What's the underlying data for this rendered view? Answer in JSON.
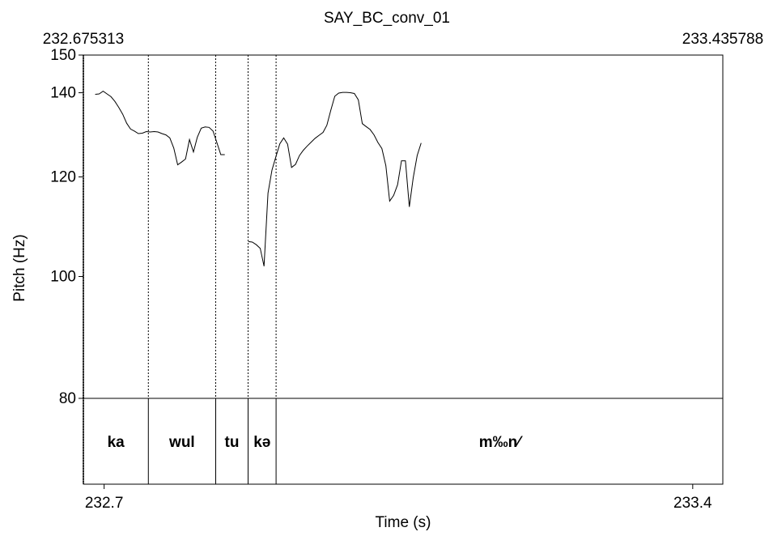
{
  "chart_data": {
    "type": "line",
    "title": "SAY_BC_conv_01",
    "top_left_time": "232.675313",
    "top_right_time": "233.435788",
    "xlabel": "Time (s)",
    "ylabel": "Pitch (Hz)",
    "xlim": [
      232.675313,
      233.435788
    ],
    "ylim": [
      80,
      150
    ],
    "x_ticks": [
      {
        "value": 232.7,
        "label": "232.7"
      },
      {
        "value": 233.4,
        "label": "233.4"
      }
    ],
    "y_ticks": [
      {
        "value": 150,
        "label": "150"
      },
      {
        "value": 140,
        "label": "140"
      },
      {
        "value": 120,
        "label": "120"
      },
      {
        "value": 100,
        "label": "100"
      },
      {
        "value": 80,
        "label": "80"
      }
    ],
    "series": [
      {
        "segments": [
          [
            [
              232.6894,
              139.6
            ],
            [
              232.6941,
              139.7
            ],
            [
              232.6988,
              140.4
            ],
            [
              232.7034,
              139.7
            ],
            [
              232.7081,
              139.0
            ],
            [
              232.7128,
              137.8
            ],
            [
              232.7174,
              136.3
            ],
            [
              232.7221,
              134.6
            ],
            [
              232.7268,
              132.4
            ],
            [
              232.7314,
              131.0
            ],
            [
              232.7361,
              130.5
            ],
            [
              232.7408,
              129.9
            ],
            [
              232.7455,
              130.0
            ],
            [
              232.7501,
              130.4
            ],
            [
              232.7548,
              130.3
            ],
            [
              232.7595,
              130.4
            ],
            [
              232.7641,
              130.3
            ],
            [
              232.7688,
              129.9
            ],
            [
              232.7735,
              129.6
            ],
            [
              232.7781,
              128.9
            ],
            [
              232.7828,
              126.5
            ],
            [
              232.7875,
              122.7
            ],
            [
              232.7921,
              123.3
            ],
            [
              232.7968,
              124.0
            ],
            [
              232.8015,
              128.5
            ],
            [
              232.8062,
              125.6
            ],
            [
              232.8108,
              129.0
            ],
            [
              232.8155,
              131.2
            ],
            [
              232.8202,
              131.5
            ],
            [
              232.8248,
              131.4
            ],
            [
              232.8295,
              130.5
            ],
            [
              232.8342,
              127.7
            ],
            [
              232.8388,
              125.0
            ],
            [
              232.8435,
              125.0
            ]
          ],
          [
            [
              232.8716,
              106.6
            ],
            [
              232.8762,
              106.5
            ],
            [
              232.8809,
              106.0
            ],
            [
              232.8856,
              105.3
            ],
            [
              232.8902,
              101.9
            ],
            [
              232.8949,
              116.5
            ],
            [
              232.8996,
              121.5
            ],
            [
              232.9042,
              124.5
            ],
            [
              232.9089,
              127.5
            ],
            [
              232.9136,
              128.9
            ],
            [
              232.9182,
              127.4
            ],
            [
              232.9229,
              122.1
            ],
            [
              232.9276,
              122.8
            ],
            [
              232.9323,
              124.8
            ],
            [
              232.9369,
              126.0
            ],
            [
              232.9416,
              127.0
            ],
            [
              232.9463,
              127.9
            ],
            [
              232.9509,
              128.8
            ],
            [
              232.9556,
              129.5
            ],
            [
              232.9603,
              130.2
            ],
            [
              232.9649,
              131.9
            ],
            [
              232.9696,
              135.6
            ],
            [
              232.9743,
              139.1
            ],
            [
              232.9789,
              139.9
            ],
            [
              232.9836,
              140.1
            ],
            [
              232.9883,
              140.1
            ],
            [
              232.9929,
              140.0
            ],
            [
              232.9976,
              139.8
            ],
            [
              233.0023,
              138.2
            ],
            [
              233.007,
              132.3
            ],
            [
              233.0116,
              131.6
            ],
            [
              233.0163,
              130.9
            ],
            [
              233.021,
              129.6
            ],
            [
              233.0256,
              127.8
            ],
            [
              233.0303,
              126.4
            ],
            [
              233.035,
              122.5
            ],
            [
              233.0396,
              114.8
            ],
            [
              233.0443,
              116.0
            ],
            [
              233.049,
              118.3
            ],
            [
              233.0536,
              123.6
            ],
            [
              233.0583,
              123.6
            ],
            [
              233.063,
              113.6
            ],
            [
              233.0676,
              119.8
            ],
            [
              233.0723,
              124.8
            ],
            [
              233.077,
              127.7
            ]
          ]
        ]
      }
    ],
    "tier": {
      "boundaries": [
        232.7526,
        232.8327,
        232.8712,
        232.9045
      ],
      "intervals": [
        {
          "label": "ka",
          "start": 232.675313,
          "end": 232.7526
        },
        {
          "label": "wul",
          "start": 232.7526,
          "end": 232.8327
        },
        {
          "label": "tu",
          "start": 232.8327,
          "end": 232.8712
        },
        {
          "label": "kə",
          "start": 232.8712,
          "end": 232.9045
        },
        {
          "label": "m‰n⁄",
          "start": 232.9045,
          "end": 233.435788
        }
      ]
    }
  }
}
